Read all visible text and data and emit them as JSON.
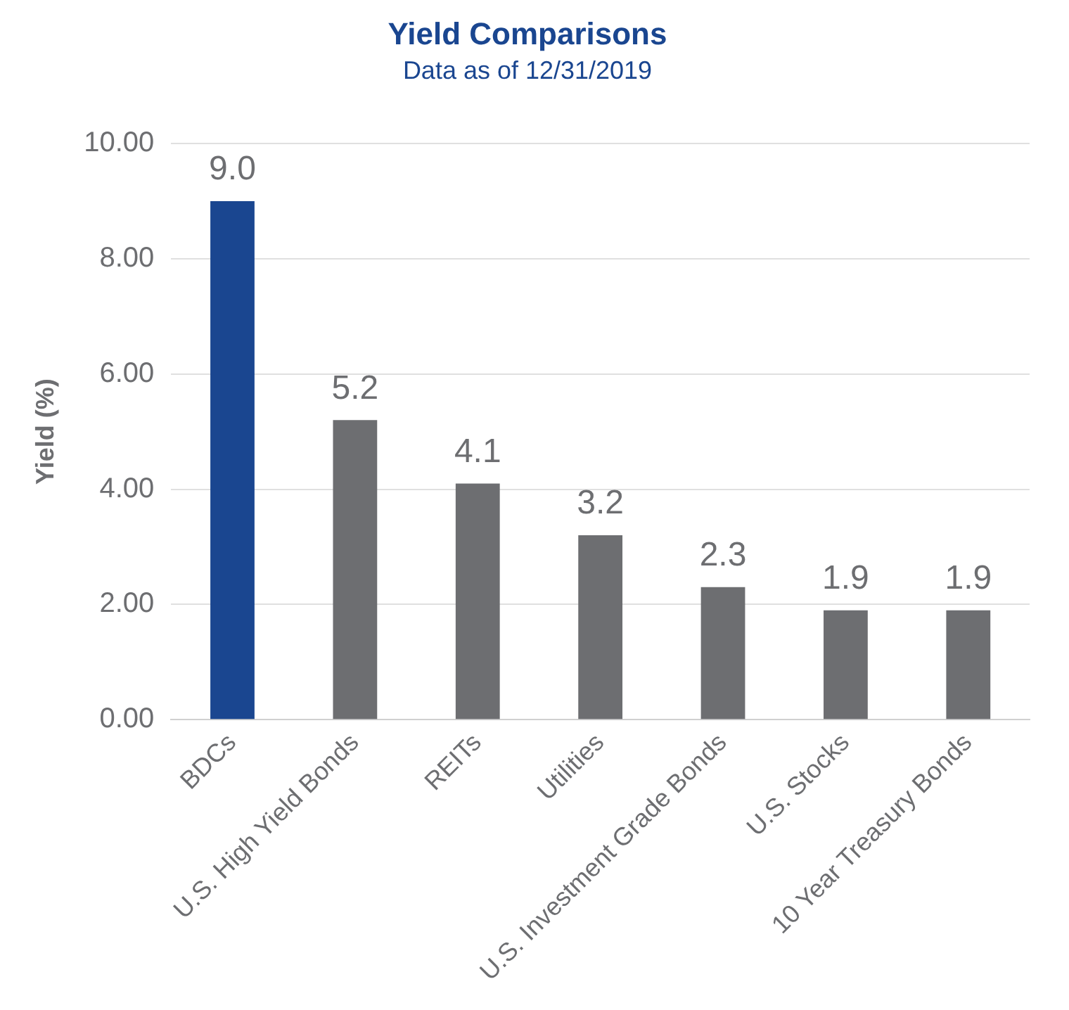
{
  "chart_data": {
    "type": "bar",
    "title": "Yield Comparisons",
    "subtitle": "Data as of 12/31/2019",
    "ylabel": "Yield (%)",
    "categories": [
      "BDCs",
      "U.S. High Yield Bonds",
      "REITs",
      "Utilities",
      "U.S. Investment Grade Bonds",
      "U.S. Stocks",
      "10 Year Treasury Bonds"
    ],
    "values": [
      9.0,
      5.2,
      4.1,
      3.2,
      2.3,
      1.9,
      1.9
    ],
    "value_labels": [
      "9.0",
      "5.2",
      "4.1",
      "3.2",
      "2.3",
      "1.9",
      "1.9"
    ],
    "colors": [
      "#1a4690",
      "#6d6e71",
      "#6d6e71",
      "#6d6e71",
      "#6d6e71",
      "#6d6e71",
      "#6d6e71"
    ],
    "ylim": [
      0,
      10
    ],
    "yticks": [
      {
        "value": 0,
        "label": "0.00"
      },
      {
        "value": 2,
        "label": "2.00"
      },
      {
        "value": 4,
        "label": "4.00"
      },
      {
        "value": 6,
        "label": "6.00"
      },
      {
        "value": 8,
        "label": "8.00"
      },
      {
        "value": 10,
        "label": "10.00"
      }
    ],
    "grid": "y",
    "legend": false
  }
}
